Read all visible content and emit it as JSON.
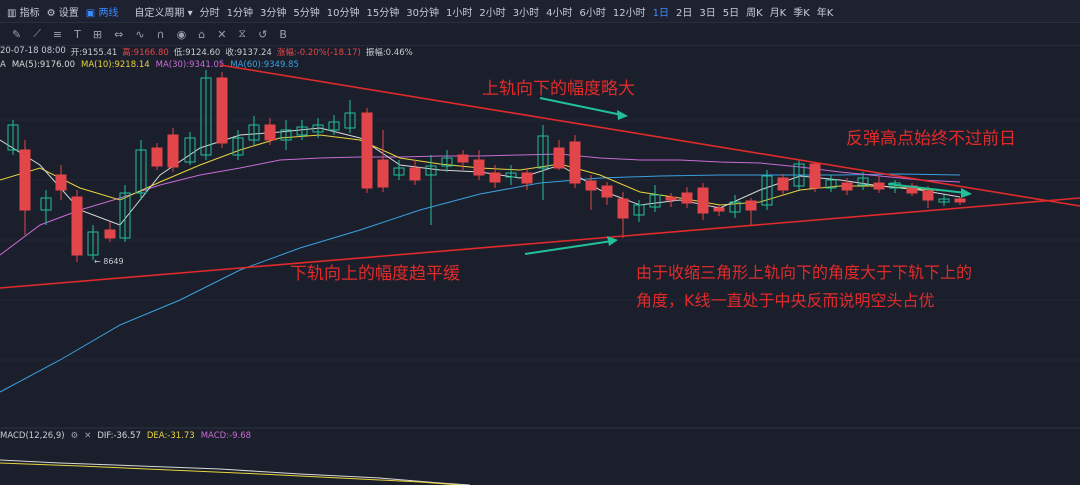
{
  "topbar": {
    "items": [
      {
        "name": "indicator-button",
        "label": "指标",
        "icon": "chart-icon"
      },
      {
        "name": "settings-button",
        "label": "设置",
        "icon": "gear-icon"
      },
      {
        "name": "two-line-button",
        "label": "两线",
        "icon": "toggle-icon",
        "active": true
      },
      {
        "name": "custom-period-dropdown",
        "label": "自定义周期 ▾"
      },
      {
        "name": "tab-1min",
        "label": "分时"
      },
      {
        "name": "tab-1m",
        "label": "1分钟"
      },
      {
        "name": "tab-3m",
        "label": "3分钟"
      },
      {
        "name": "tab-5m",
        "label": "5分钟"
      },
      {
        "name": "tab-10m",
        "label": "10分钟"
      },
      {
        "name": "tab-15m",
        "label": "15分钟"
      },
      {
        "name": "tab-30m",
        "label": "30分钟"
      },
      {
        "name": "tab-1h",
        "label": "1小时"
      },
      {
        "name": "tab-2h",
        "label": "2小时"
      },
      {
        "name": "tab-3h",
        "label": "3小时"
      },
      {
        "name": "tab-4h",
        "label": "4小时"
      },
      {
        "name": "tab-6h",
        "label": "6小时"
      },
      {
        "name": "tab-12h",
        "label": "12小时"
      },
      {
        "name": "tab-1d",
        "label": "1日",
        "active": true
      },
      {
        "name": "tab-2d",
        "label": "2日"
      },
      {
        "name": "tab-3d",
        "label": "3日"
      },
      {
        "name": "tab-5d",
        "label": "5日"
      },
      {
        "name": "tab-week",
        "label": "周K"
      },
      {
        "name": "tab-month",
        "label": "月K"
      },
      {
        "name": "tab-season",
        "label": "季K"
      },
      {
        "name": "tab-year",
        "label": "年K"
      }
    ],
    "accent": "#3d8bff"
  },
  "toolbar": {
    "icons": [
      "pencil-icon",
      "line-icon",
      "multi-line-icon",
      "text-icon",
      "crosshair-icon",
      "measure-icon",
      "bezier-icon",
      "magnet-icon",
      "eye-icon",
      "lock-icon",
      "trash-icon",
      "mirror-icon",
      "restore-icon",
      "bold-icon"
    ]
  },
  "info": {
    "date": "20-07-18 08:00",
    "open": "开:9155.41",
    "high": "高:9166.80",
    "low": "低:9124.60",
    "close": "收:9137.24",
    "change": "涨幅:-0.20%(-18.17)",
    "amplitude": "振幅:0.46%"
  },
  "ma": {
    "prefix": "A",
    "ma5": "MA(5):9176.00",
    "ma10": "MA(10):9218.14",
    "ma30": "MA(30):9341.05",
    "ma60": "MA(60):9349.85",
    "colors": {
      "ma5": "#d9d9d9",
      "ma10": "#e8d33f",
      "ma30": "#c86bd6",
      "ma60": "#3aa0e0"
    }
  },
  "macd": {
    "label": "MACD(12,26,9)",
    "dif": "DIF:-36.57",
    "dea": "DEA:-31.73",
    "macd": "MACD:-9.68"
  },
  "chart_data": {
    "type": "candlestick",
    "low_marker": "← 8649",
    "up_color": "#22c09a",
    "down_color": "#e2464a",
    "trendline_color": "#e02b2b"
  },
  "annotations": {
    "upper_rail": "上轨向下的幅度略大",
    "lower_rail": "下轨向上的幅度趋平缓",
    "rebound": "反弹高点始终不过前日",
    "explain_line1": "由于收缩三角形上轨向下的角度大于下轨下上的",
    "explain_line2": "角度，K线一直处于中央反而说明空头占优"
  }
}
